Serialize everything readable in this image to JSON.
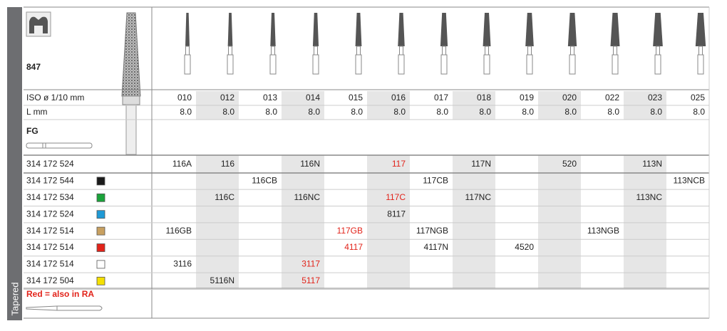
{
  "side_label": "Tapered",
  "product": {
    "number": "847",
    "shank": "FG"
  },
  "specs": [
    {
      "label": "ISO ø 1/10 mm",
      "values": [
        "010",
        "012",
        "013",
        "014",
        "015",
        "016",
        "017",
        "018",
        "019",
        "020",
        "022",
        "023",
        "025"
      ]
    },
    {
      "label": "L mm",
      "values": [
        "8.0",
        "8.0",
        "8.0",
        "8.0",
        "8.0",
        "8.0",
        "8.0",
        "8.0",
        "8.0",
        "8.0",
        "8.0",
        "8.0",
        "8.0"
      ]
    }
  ],
  "highlight_color": "#e2231a",
  "articles": [
    {
      "article": "314 172 524",
      "swatch": null,
      "cells": [
        "116A",
        "116",
        null,
        "116N",
        null,
        {
          "text": "117",
          "red": true
        },
        null,
        "117N",
        null,
        "520",
        null,
        "113N",
        null
      ]
    },
    {
      "article": "314 172 544",
      "swatch": "#1a1a1a",
      "cells": [
        null,
        null,
        "116CB",
        null,
        null,
        null,
        "117CB",
        null,
        null,
        null,
        null,
        null,
        "113NCB"
      ]
    },
    {
      "article": "314 172 534",
      "swatch": "#1aa33a",
      "cells": [
        null,
        "116C",
        null,
        "116NC",
        null,
        {
          "text": "117C",
          "red": true
        },
        null,
        "117NC",
        null,
        null,
        null,
        "113NC",
        null
      ]
    },
    {
      "article": "314 172 524",
      "swatch": "#1e9ad6",
      "cells": [
        null,
        null,
        null,
        null,
        null,
        "8117",
        null,
        null,
        null,
        null,
        null,
        null,
        null
      ]
    },
    {
      "article": "314 172 514",
      "swatch": "#c8a060",
      "cells": [
        "116GB",
        null,
        null,
        null,
        {
          "text": "117GB",
          "red": true
        },
        null,
        "117NGB",
        null,
        null,
        null,
        "113NGB",
        null,
        null
      ]
    },
    {
      "article": "314 172 514",
      "swatch": "#e2231a",
      "cells": [
        null,
        null,
        null,
        null,
        {
          "text": "4117",
          "red": true
        },
        null,
        "4117N",
        null,
        "4520",
        null,
        null,
        null,
        null
      ]
    },
    {
      "article": "314 172 514",
      "swatch": "#ffffff",
      "cells": [
        "3116",
        null,
        null,
        {
          "text": "3117",
          "red": true
        },
        null,
        null,
        null,
        null,
        null,
        null,
        null,
        null,
        null
      ]
    },
    {
      "article": "314 172 504",
      "swatch": "#f5e000",
      "cells": [
        null,
        "5116N",
        null,
        {
          "text": "5117",
          "red": true
        },
        null,
        null,
        null,
        null,
        null,
        null,
        null,
        null,
        null
      ]
    }
  ],
  "note": "Red = also in RA"
}
